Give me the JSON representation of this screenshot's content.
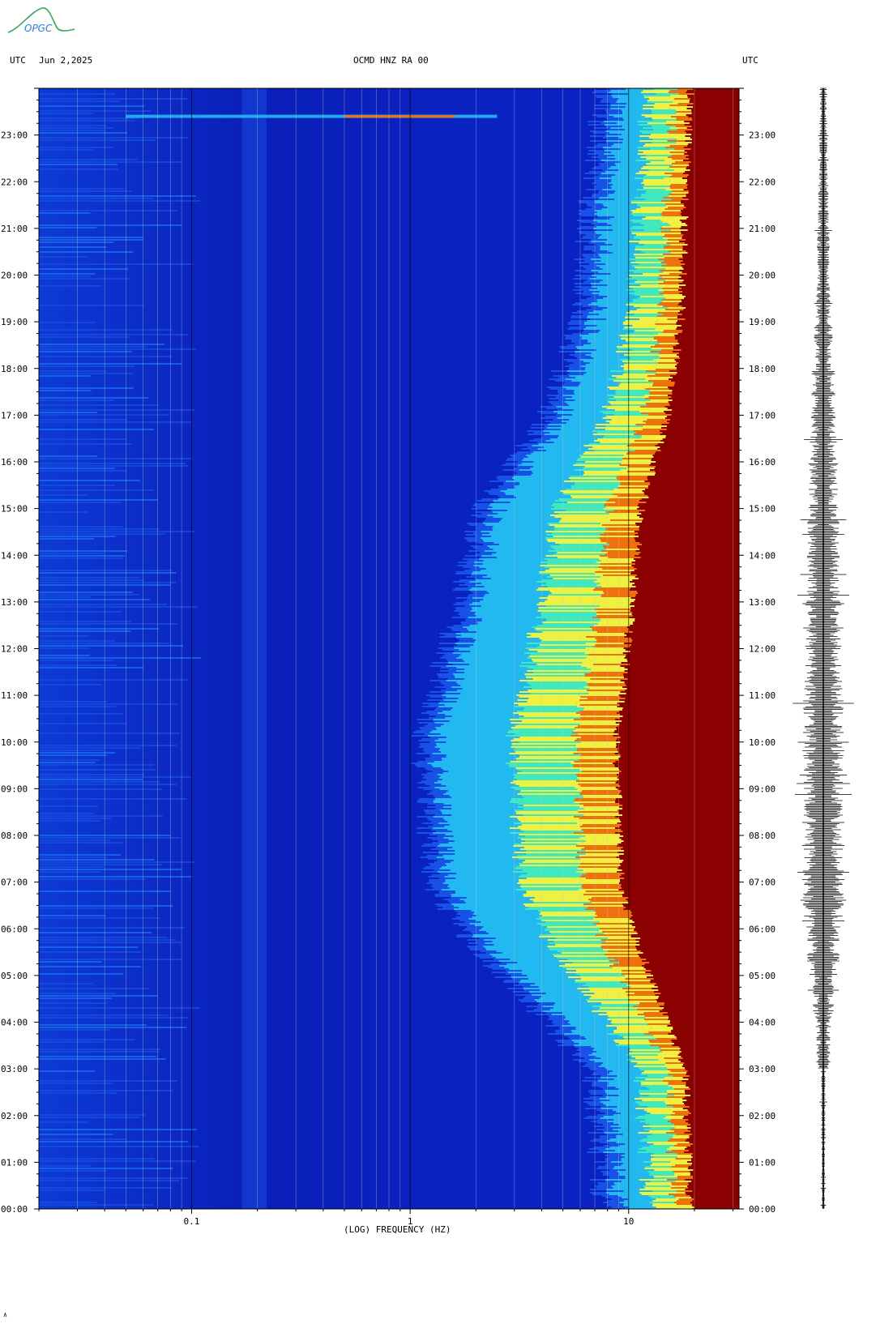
{
  "header": {
    "left_label": "UTC",
    "date": "Jun 2,2025",
    "station": "OCMD HNZ RA 00",
    "right_label": "UTC"
  },
  "logo": {
    "text": "OPGC",
    "color": "#3aa65a"
  },
  "footer_mark": "∧",
  "chart_data": {
    "type": "heatmap",
    "title": "OCMD HNZ RA 00",
    "xlabel": "(LOG) FREQUENCY (HZ)",
    "x_scale": "log",
    "xlim": [
      0.02,
      32
    ],
    "x_ticks": [
      {
        "value": 0.1,
        "label": "0.1"
      },
      {
        "value": 1,
        "label": "1"
      },
      {
        "value": 10,
        "label": "10"
      }
    ],
    "ylim_hours_utc": [
      0,
      24
    ],
    "y_ticks": [
      "00:00",
      "01:00",
      "02:00",
      "03:00",
      "04:00",
      "05:00",
      "06:00",
      "07:00",
      "08:00",
      "09:00",
      "10:00",
      "11:00",
      "12:00",
      "13:00",
      "14:00",
      "15:00",
      "16:00",
      "17:00",
      "18:00",
      "19:00",
      "20:00",
      "21:00",
      "22:00",
      "23:00"
    ],
    "colormap": [
      "#0a1fb0",
      "#1a5ef0",
      "#22b8f0",
      "#40e8c0",
      "#f0f040",
      "#f07010",
      "#8b0000"
    ],
    "high_energy_front_hz": [
      {
        "hour": 0,
        "freq": 9
      },
      {
        "hour": 3,
        "freq": 8
      },
      {
        "hour": 4,
        "freq": 5
      },
      {
        "hour": 6,
        "freq": 2
      },
      {
        "hour": 7,
        "freq": 1.5
      },
      {
        "hour": 10,
        "freq": 1.3
      },
      {
        "hour": 13,
        "freq": 2
      },
      {
        "hour": 15,
        "freq": 2.5
      },
      {
        "hour": 17,
        "freq": 5
      },
      {
        "hour": 19,
        "freq": 7
      },
      {
        "hour": 22,
        "freq": 8
      },
      {
        "hour": 24,
        "freq": 9
      }
    ],
    "events": [
      {
        "hour": 23.4,
        "freq_start": 0.05,
        "freq_end": 2.5,
        "label": ""
      }
    ],
    "trace_amplitude_by_hour": [
      0.08,
      0.1,
      0.12,
      0.35,
      0.5,
      0.8,
      1.0,
      1.0,
      1.0,
      1.0,
      0.95,
      0.9,
      0.85,
      0.8,
      0.75,
      0.7,
      0.6,
      0.55,
      0.45,
      0.35,
      0.3,
      0.25,
      0.2,
      0.18
    ]
  }
}
